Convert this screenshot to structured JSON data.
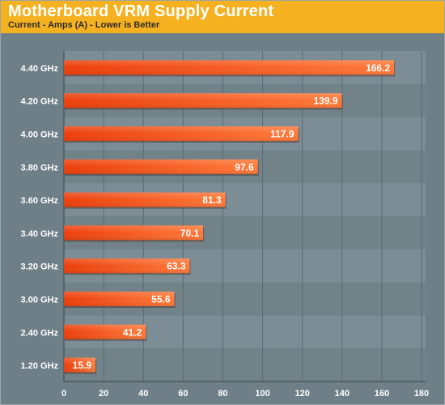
{
  "chart_data": {
    "type": "bar",
    "orientation": "horizontal",
    "title": "Motherboard VRM Supply Current",
    "subtitle": "Current - Amps (A) - Lower is Better",
    "categories": [
      "4.40 GHz",
      "4.20 GHz",
      "4.00 GHz",
      "3.80 GHz",
      "3.60 GHz",
      "3.40 GHz",
      "3.20 GHz",
      "3.00 GHz",
      "2.40 GHz",
      "1.20 GHz"
    ],
    "values": [
      166.2,
      139.9,
      117.9,
      97.6,
      81.3,
      70.1,
      63.3,
      55.6,
      41.2,
      15.9
    ],
    "value_labels": [
      "166.2",
      "139.9",
      "117.9",
      "97.6",
      "81.3",
      "70.1",
      "63.3",
      "55.6",
      "41.2",
      "15.9"
    ],
    "xlim": [
      0,
      180
    ],
    "xticks": [
      "0",
      "20",
      "40",
      "60",
      "80",
      "100",
      "120",
      "140",
      "160",
      "180"
    ],
    "grid": "vertical",
    "bar_color": "#ff5a1e",
    "header_color": "#f5b120",
    "background_color": "#6e7f87"
  }
}
